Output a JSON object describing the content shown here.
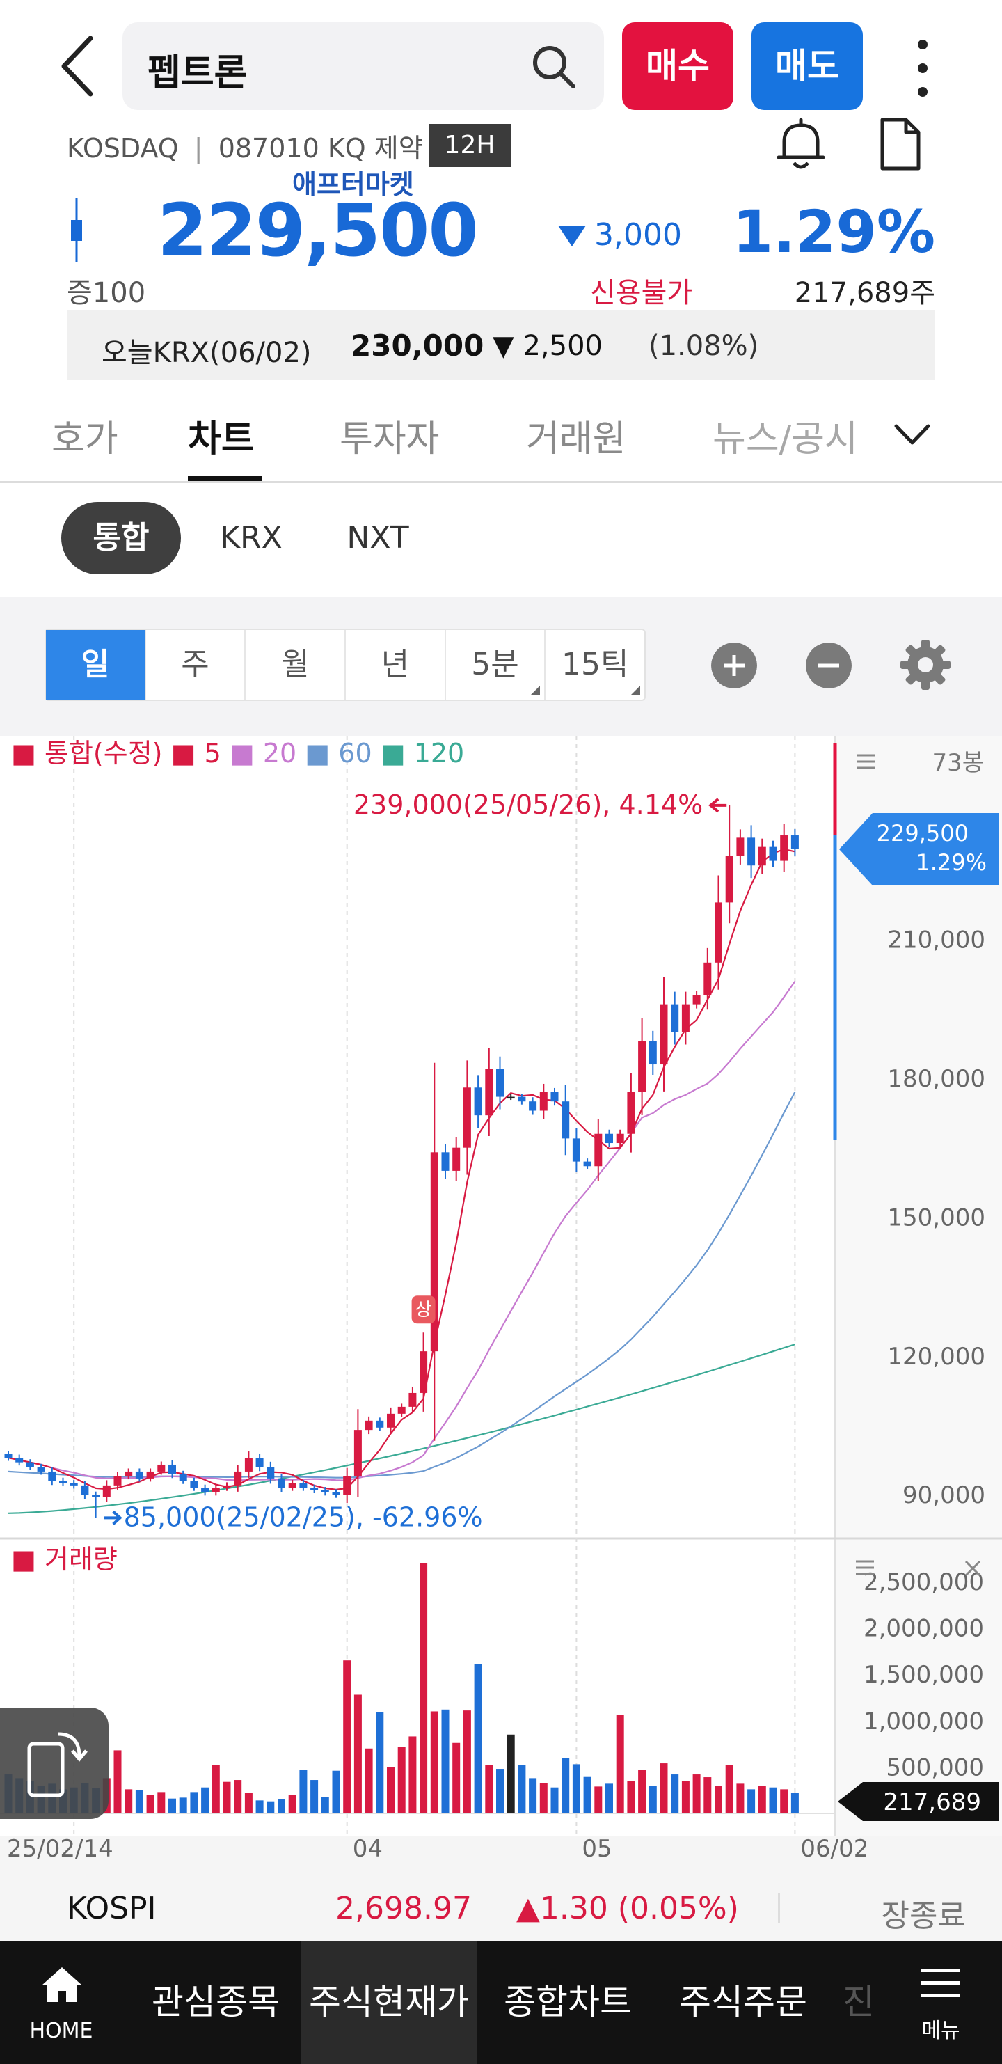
{
  "header": {
    "search_value": "펩트론",
    "buy_label": "매수",
    "sell_label": "매도"
  },
  "ticker": {
    "exchange": "KOSDAQ",
    "separator": "|",
    "code": "087010 KQ",
    "sector": "제약",
    "session_tag": "12H",
    "aftermarket_label": "애프터마켓",
    "price": "229,500",
    "change_value": "3,000",
    "change_pct": "1.29%",
    "margin_label": "증100",
    "credit_label": "신용불가",
    "volume": "217,689주",
    "colors": {
      "down": "#1869d6",
      "up": "#d81a42"
    }
  },
  "krx_row": {
    "name": "오늘KRX(06/02)",
    "price": "230,000",
    "change": "▼ 2,500",
    "pct": "(1.08%)"
  },
  "main_tabs": [
    {
      "label": "호가",
      "active": false
    },
    {
      "label": "차트",
      "active": true
    },
    {
      "label": "투자자",
      "active": false
    },
    {
      "label": "거래원",
      "active": false
    },
    {
      "label": "뉴스/공시",
      "active": false
    }
  ],
  "market_buttons": [
    {
      "label": "통합",
      "active": true
    },
    {
      "label": "KRX",
      "active": false
    },
    {
      "label": "NXT",
      "active": false
    }
  ],
  "periods": [
    {
      "label": "일",
      "active": true,
      "corner": false
    },
    {
      "label": "주",
      "active": false,
      "corner": false
    },
    {
      "label": "월",
      "active": false,
      "corner": false
    },
    {
      "label": "년",
      "active": false,
      "corner": false
    },
    {
      "label": "5분",
      "active": false,
      "corner": true
    },
    {
      "label": "15틱",
      "active": false,
      "corner": true
    }
  ],
  "toolbar_icons": [
    "zoom-in-icon",
    "zoom-out-icon",
    "gear-icon"
  ],
  "chart_data": {
    "type": "candlestick",
    "legend": {
      "main_label": "통합(수정)",
      "ma": [
        {
          "label": "5",
          "color": "#d81a42"
        },
        {
          "label": "20",
          "color": "#c77ad0"
        },
        {
          "label": "60",
          "color": "#6b99d0"
        },
        {
          "label": "120",
          "color": "#3aaa95"
        }
      ]
    },
    "bar_count_label": "73봉",
    "y_ticks": [
      "210,000",
      "180,000",
      "150,000",
      "120,000",
      "90,000"
    ],
    "y_tick_values": [
      210000,
      180000,
      150000,
      120000,
      90000
    ],
    "ylim": [
      81000,
      248000
    ],
    "x_ticks": [
      {
        "label": "25/02/14",
        "index": 0
      },
      {
        "label": "04",
        "index": 31
      },
      {
        "label": "05",
        "index": 52
      },
      {
        "label": "06/02",
        "index": 72
      }
    ],
    "current_price_label": "229,500",
    "current_pct_label": "1.29%",
    "current_price": 229500,
    "high_annotation": "239,000(25/05/26), 4.14%",
    "high_value": 239000,
    "high_index": 66,
    "low_annotation": "85,000(25/02/25), -62.96%",
    "low_value": 85000,
    "low_index": 8,
    "limit_up_label": "상",
    "limit_up_index": 38,
    "closes": [
      98000,
      97000,
      96000,
      95000,
      93000,
      92500,
      92000,
      90000,
      89500,
      92000,
      94000,
      95000,
      93500,
      95000,
      96500,
      94500,
      93000,
      91500,
      90500,
      91500,
      92000,
      95000,
      98000,
      96000,
      93500,
      91500,
      92500,
      91500,
      91000,
      90500,
      90000,
      94000,
      104000,
      106000,
      104500,
      107500,
      109000,
      112000,
      121000,
      164000,
      160000,
      165000,
      178000,
      172000,
      182000,
      176000,
      176000,
      175000,
      173000,
      177000,
      175000,
      167000,
      162000,
      161000,
      168000,
      166000,
      168000,
      177000,
      188000,
      183000,
      196000,
      190000,
      196000,
      198000,
      205000,
      218000,
      228000,
      232000,
      226000,
      230000,
      227000,
      232500,
      229500
    ],
    "volume": {
      "label": "거래량",
      "y_ticks": [
        "2,500,000",
        "2,000,000",
        "1,500,000",
        "1,000,000",
        "500,000"
      ],
      "y_tick_values": [
        2500000,
        2000000,
        1500000,
        1000000,
        500000
      ],
      "ylim": [
        0,
        2800000
      ],
      "current_label": "217,689",
      "values": [
        420000,
        380000,
        350000,
        300000,
        320000,
        260000,
        280000,
        330000,
        270000,
        380000,
        680000,
        260000,
        250000,
        200000,
        230000,
        160000,
        170000,
        230000,
        280000,
        520000,
        340000,
        360000,
        220000,
        140000,
        130000,
        150000,
        200000,
        470000,
        360000,
        180000,
        460000,
        1650000,
        1280000,
        700000,
        1090000,
        500000,
        720000,
        830000,
        2700000,
        1100000,
        1120000,
        760000,
        1110000,
        1610000,
        520000,
        480000,
        850000,
        520000,
        380000,
        330000,
        280000,
        600000,
        530000,
        400000,
        290000,
        320000,
        1060000,
        350000,
        470000,
        300000,
        540000,
        420000,
        350000,
        420000,
        390000,
        300000,
        520000,
        320000,
        260000,
        300000,
        280000,
        260000,
        217689
      ]
    }
  },
  "index_bar": {
    "name": "KOSPI",
    "value": "2,698.97",
    "change": "▲1.30 (0.05%)",
    "status": "장종료"
  },
  "bottom_nav": {
    "home_label": "HOME",
    "items": [
      {
        "label": "관심종목",
        "active": false
      },
      {
        "label": "주식현재가",
        "active": true
      },
      {
        "label": "종합차트",
        "active": false
      },
      {
        "label": "주식주문",
        "active": false
      },
      {
        "label": "진",
        "active": false
      }
    ],
    "menu_label": "메뉴"
  }
}
